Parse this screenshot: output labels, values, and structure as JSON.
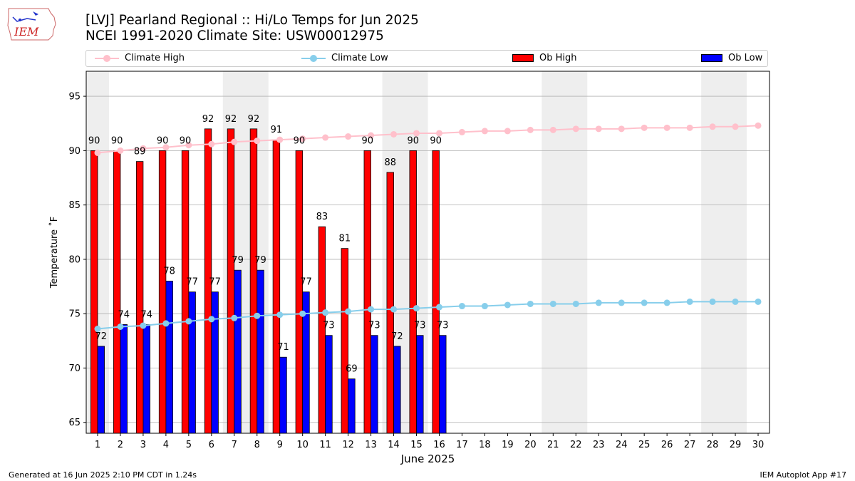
{
  "header": {
    "title_line1": "[LVJ] Pearland Regional :: Hi/Lo Temps for Jun 2025",
    "title_line2": "NCEI 1991-2020 Climate Site: USW00012975",
    "logo_text": "IEM"
  },
  "legend": {
    "items": [
      {
        "label": "Climate High",
        "kind": "line",
        "color": "#ffc0cb"
      },
      {
        "label": "Climate Low",
        "kind": "line",
        "color": "#87ceeb"
      },
      {
        "label": "Ob High",
        "kind": "bar",
        "color": "#ff0000"
      },
      {
        "label": "Ob Low",
        "kind": "bar",
        "color": "#0000ff"
      }
    ]
  },
  "footer": {
    "left": "Generated at 16 Jun 2025 2:10 PM CDT in 1.24s",
    "right": "IEM Autoplot App #17"
  },
  "chart_data": {
    "type": "bar",
    "xlabel": "June 2025",
    "ylabel": "Temperature ˚F",
    "xlim": [
      0.5,
      30.5
    ],
    "ylim": [
      64,
      97.3
    ],
    "x": [
      1,
      2,
      3,
      4,
      5,
      6,
      7,
      8,
      9,
      10,
      11,
      12,
      13,
      14,
      15,
      16,
      17,
      18,
      19,
      20,
      21,
      22,
      23,
      24,
      25,
      26,
      27,
      28,
      29,
      30
    ],
    "yticks": [
      65,
      70,
      75,
      80,
      85,
      90,
      95
    ],
    "grid": "horizontal",
    "weekend_shading": [
      [
        0.5,
        1.5
      ],
      [
        6.5,
        8.5
      ],
      [
        13.5,
        15.5
      ],
      [
        20.5,
        22.5
      ],
      [
        27.5,
        29.5
      ]
    ],
    "shade_color": "#eeeeee",
    "ob_high": [
      90,
      90,
      89,
      90,
      90,
      92,
      92,
      92,
      91,
      90,
      83,
      81,
      90,
      88,
      90,
      90
    ],
    "ob_low": [
      72,
      74,
      74,
      78,
      77,
      77,
      79,
      79,
      71,
      77,
      73,
      69,
      73,
      72,
      73,
      73
    ],
    "climate_high": [
      89.8,
      90.0,
      90.2,
      90.3,
      90.5,
      90.6,
      90.8,
      90.9,
      91.0,
      91.1,
      91.2,
      91.3,
      91.4,
      91.5,
      91.6,
      91.6,
      91.7,
      91.8,
      91.8,
      91.9,
      91.9,
      92.0,
      92.0,
      92.0,
      92.1,
      92.1,
      92.1,
      92.2,
      92.2,
      92.3
    ],
    "climate_low": [
      73.6,
      73.8,
      73.9,
      74.1,
      74.3,
      74.5,
      74.6,
      74.8,
      74.9,
      75.0,
      75.1,
      75.2,
      75.4,
      75.4,
      75.5,
      75.6,
      75.7,
      75.7,
      75.8,
      75.9,
      75.9,
      75.9,
      76.0,
      76.0,
      76.0,
      76.0,
      76.1,
      76.1,
      76.1,
      76.1
    ],
    "colors": {
      "ob_high": "#ff0000",
      "ob_low": "#0000ff",
      "climate_high": "#ffc0cb",
      "climate_low": "#87ceeb",
      "grid": "#b0b0b0"
    }
  }
}
